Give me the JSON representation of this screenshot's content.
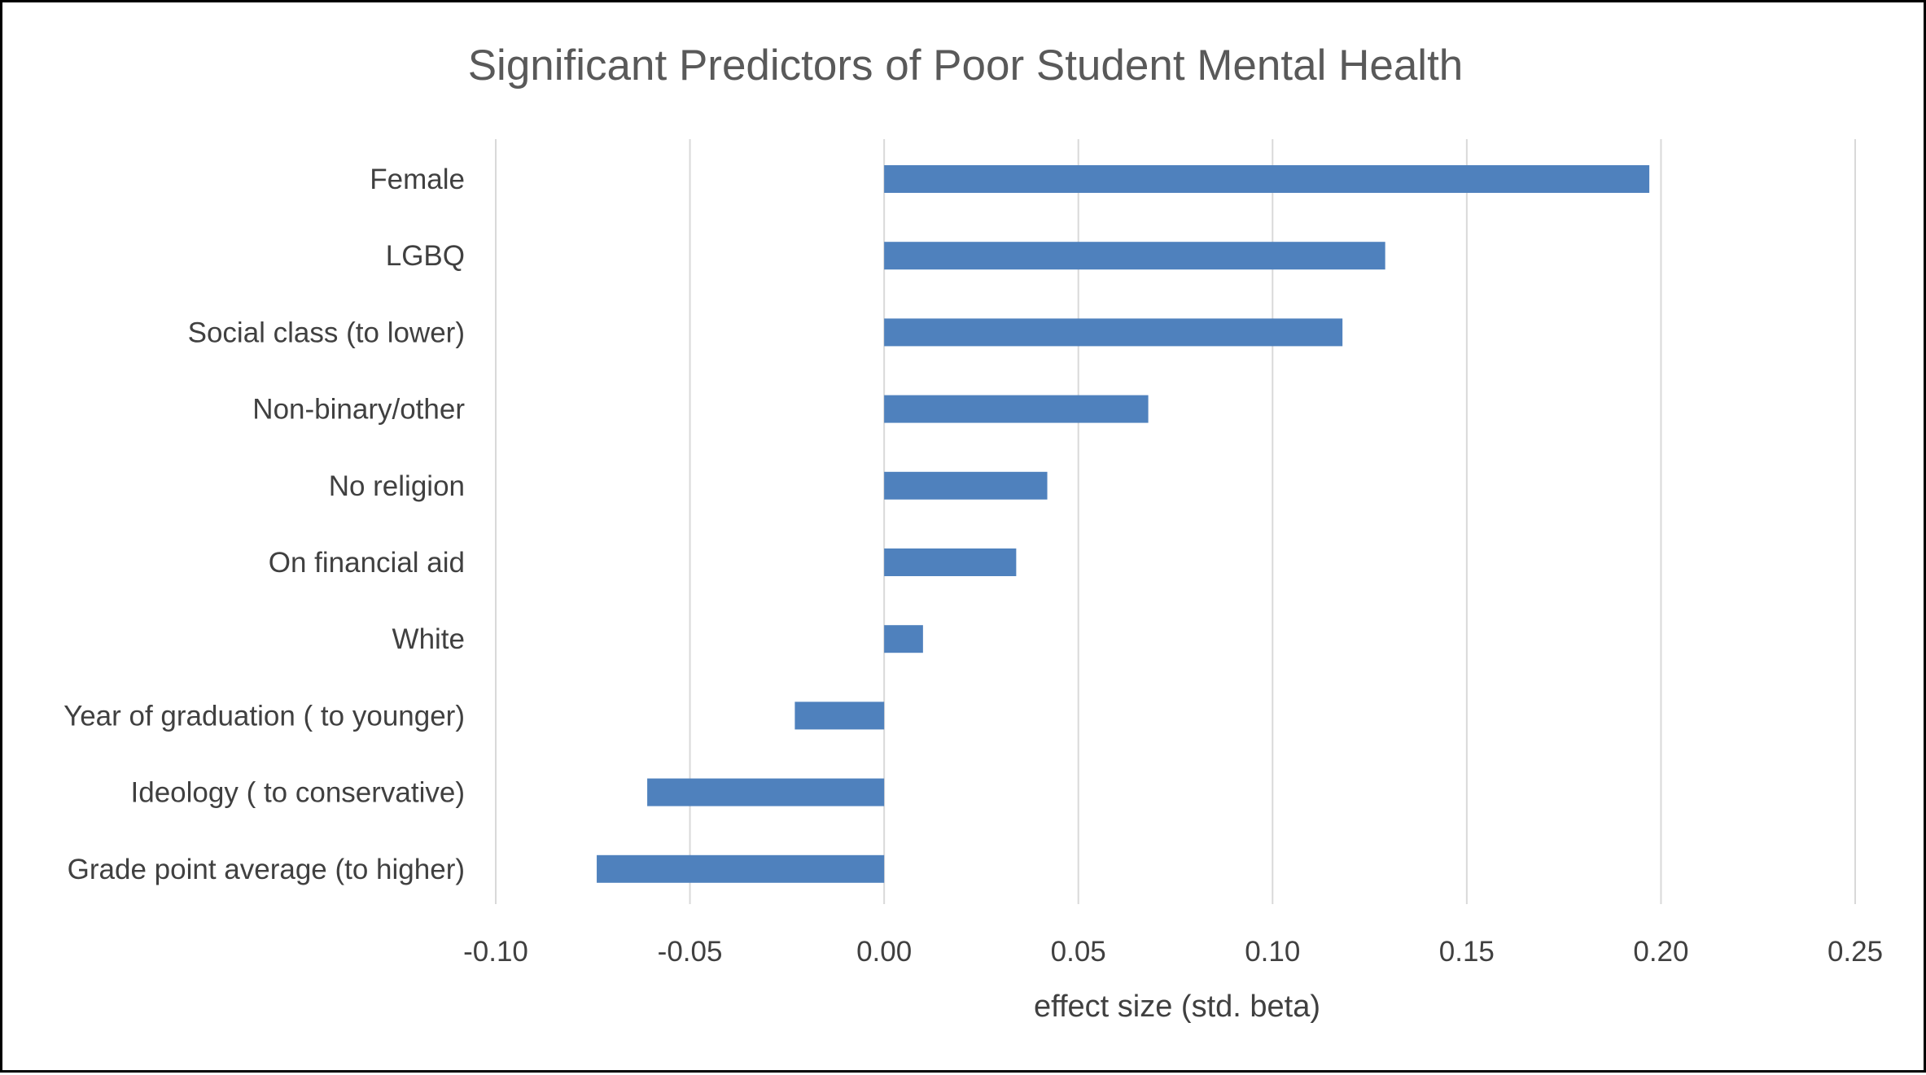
{
  "chart_data": {
    "type": "bar",
    "orientation": "horizontal",
    "title": "Significant Predictors of Poor Student Mental Health",
    "xlabel": "effect size (std. beta)",
    "ylabel": "",
    "xlim": [
      -0.1,
      0.25
    ],
    "xticks": [
      -0.1,
      -0.05,
      0.0,
      0.05,
      0.1,
      0.15,
      0.2,
      0.25
    ],
    "xtick_labels": [
      "-0.10",
      "-0.05",
      "0.00",
      "0.05",
      "0.10",
      "0.15",
      "0.20",
      "0.25"
    ],
    "grid": "vertical",
    "legend": "none",
    "bar_color": "#4F81BD",
    "categories": [
      "Female",
      "LGBQ",
      "Social class (to lower)",
      "Non-binary/other",
      "No religion",
      "On financial aid",
      "White",
      "Year of graduation ( to younger)",
      "Ideology ( to conservative)",
      "Grade point average (to higher)"
    ],
    "values": [
      0.197,
      0.129,
      0.118,
      0.068,
      0.042,
      0.034,
      0.01,
      -0.023,
      -0.061,
      -0.074
    ]
  },
  "colors": {
    "bar": "#4F81BD",
    "grid": "#D9D9D9",
    "text": "#404040",
    "title": "#595959",
    "border": "#000000"
  }
}
